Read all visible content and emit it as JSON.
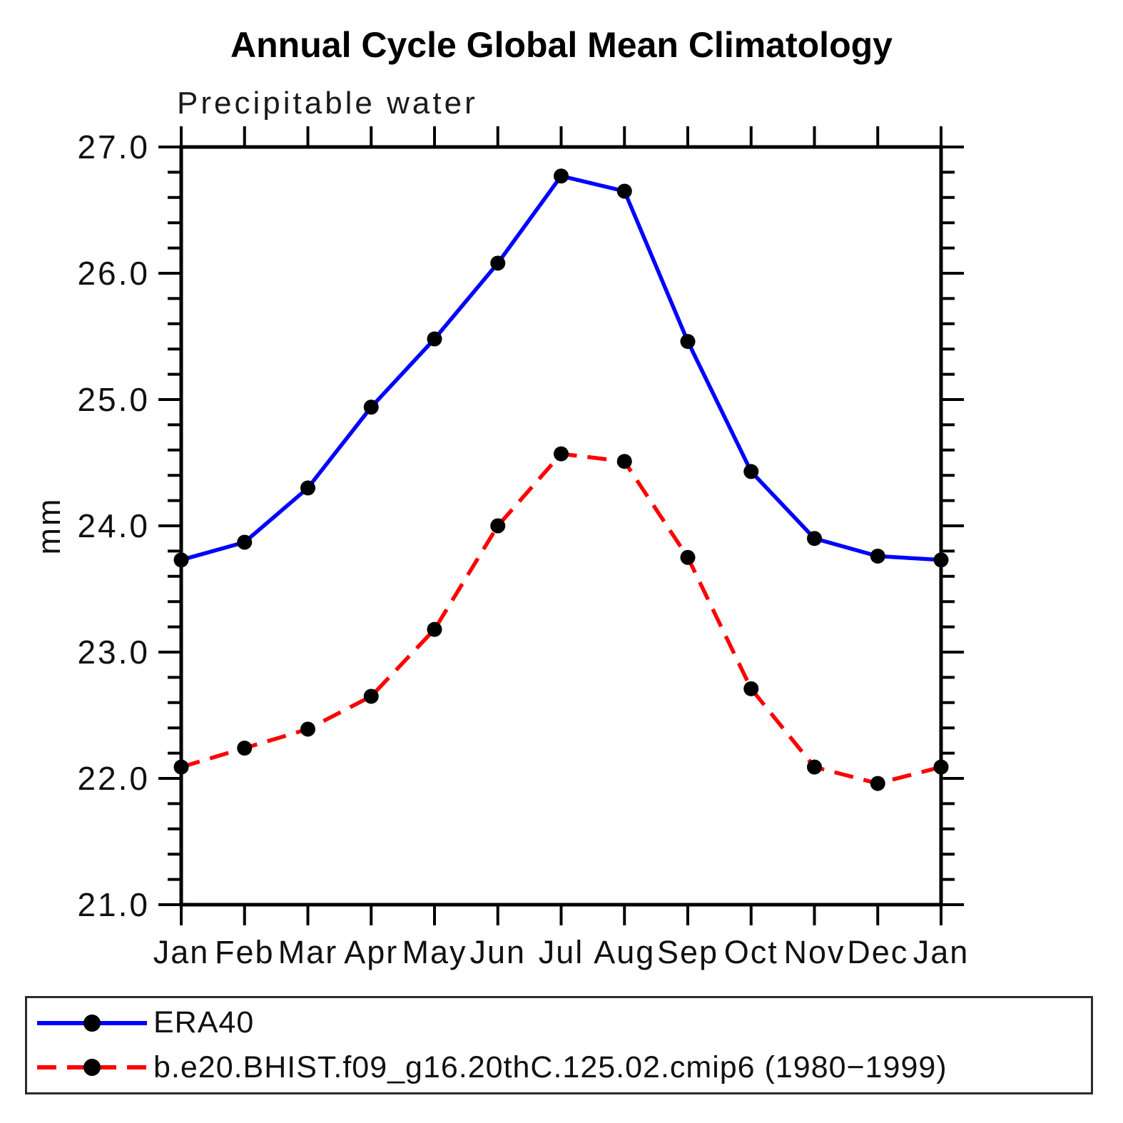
{
  "title": "Annual Cycle Global Mean Climatology",
  "subtitle": "Precipitable water",
  "chart_data": {
    "type": "line",
    "title": "Annual Cycle Global Mean Climatology",
    "subtitle": "Precipitable water",
    "xlabel": "",
    "ylabel": "mm",
    "x_tick_labels": [
      "Jan",
      "Feb",
      "Mar",
      "Apr",
      "May",
      "Jun",
      "Jul",
      "Aug",
      "Sep",
      "Oct",
      "Nov",
      "Dec",
      "Jan"
    ],
    "y_tick_labels": [
      "21.0",
      "22.0",
      "23.0",
      "24.0",
      "25.0",
      "26.0",
      "27.0"
    ],
    "ylim": [
      21.0,
      27.0
    ],
    "y_major_step": 1.0,
    "y_minor_step": 0.2,
    "grid": false,
    "legend_position": "bottom-box",
    "marker_color": "#000000",
    "axis_color": "#000000",
    "series": [
      {
        "name": "ERA40",
        "color": "#0000ff",
        "line_style": "solid",
        "marker": "circle",
        "values": [
          23.73,
          23.87,
          24.3,
          24.94,
          25.48,
          26.08,
          26.77,
          26.65,
          25.46,
          24.43,
          23.9,
          23.76,
          23.73
        ]
      },
      {
        "name": "b.e20.BHIST.f09_g16.20thC.125.02.cmip6 (1980−1999)",
        "color": "#ff0000",
        "line_style": "dashed",
        "marker": "circle",
        "values": [
          22.09,
          22.24,
          22.39,
          22.65,
          23.18,
          24.0,
          24.57,
          24.51,
          23.75,
          22.71,
          22.09,
          21.96,
          22.09
        ]
      }
    ]
  }
}
